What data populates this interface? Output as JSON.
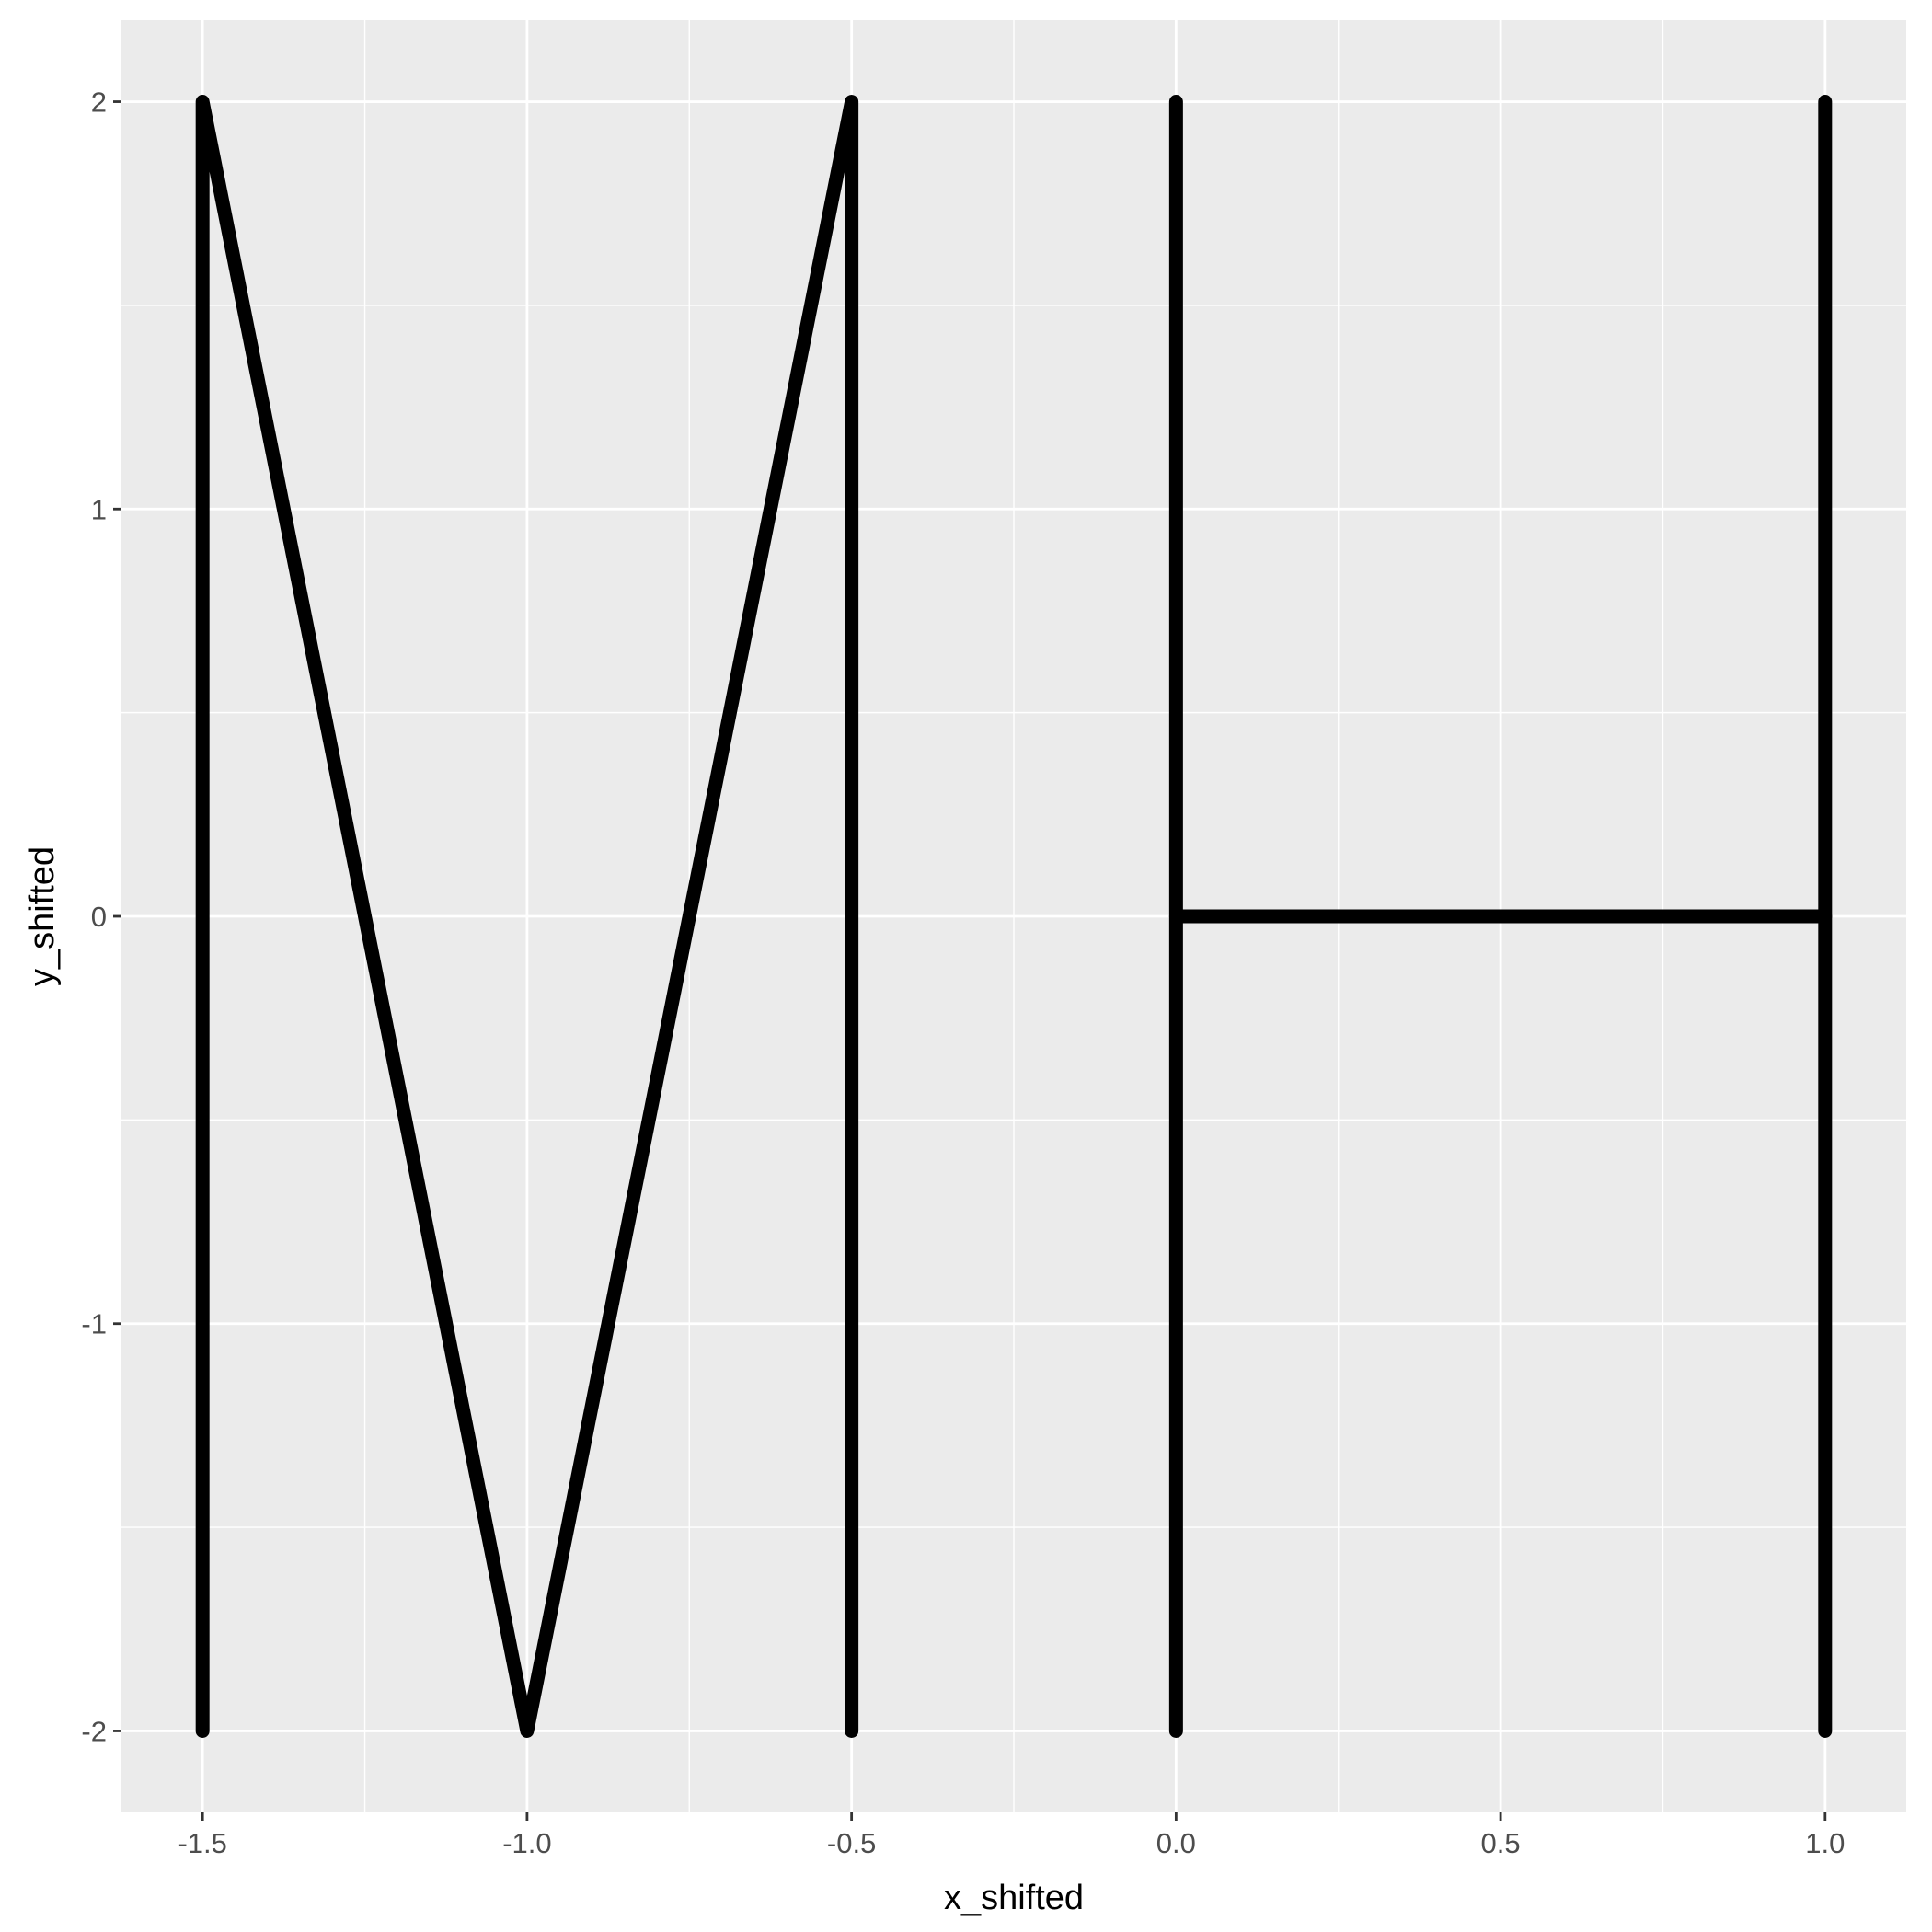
{
  "chart_data": {
    "type": "line",
    "title": "",
    "xlabel": "x_shifted",
    "ylabel": "y_shifted",
    "xlim": [
      -1.625,
      1.125
    ],
    "ylim": [
      -2.2,
      2.2
    ],
    "x_ticks": [
      -1.5,
      -1.0,
      -0.5,
      0.0,
      0.5,
      1.0
    ],
    "x_tick_labels": [
      "-1.5",
      "-1.0",
      "-0.5",
      "0.0",
      "0.5",
      "1.0"
    ],
    "y_ticks": [
      -2,
      -1,
      0,
      1,
      2
    ],
    "y_tick_labels": [
      "-2",
      "-1",
      "0",
      "1",
      "2"
    ],
    "grid": true,
    "colors": {
      "panel": "#ebebeb",
      "grid": "#ffffff",
      "line": "#000000",
      "tick_text": "#4d4d4d"
    },
    "series": [
      {
        "points": [
          [
            -1.5,
            -2
          ],
          [
            -1.5,
            2
          ],
          [
            -1.0,
            -2
          ],
          [
            -0.5,
            2
          ],
          [
            -0.5,
            -2
          ]
        ]
      },
      {
        "points": [
          [
            0,
            -2
          ],
          [
            0,
            2
          ]
        ]
      },
      {
        "points": [
          [
            0,
            0
          ],
          [
            1,
            0
          ]
        ]
      },
      {
        "points": [
          [
            1,
            -2
          ],
          [
            1,
            2
          ]
        ]
      }
    ]
  }
}
